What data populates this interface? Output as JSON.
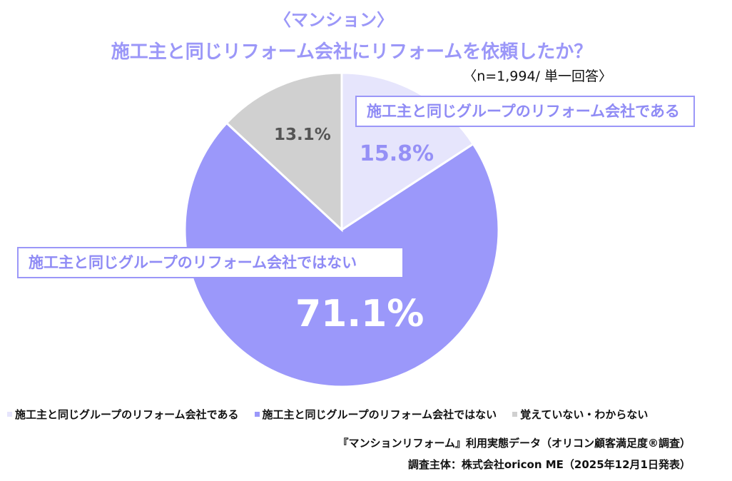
{
  "header": {
    "subtitle": "〈マンション〉",
    "title": "施工主と同じリフォーム会社にリフォームを依頼したか？",
    "sample": "〈n=1,994/ 単一回答〉"
  },
  "chart_data": {
    "type": "pie",
    "title": "施工主と同じリフォーム会社にリフォームを依頼したか？",
    "slices": [
      {
        "label": "施工主と同じグループのリフォーム会社である",
        "value": 15.8,
        "value_label": "15.8%",
        "color": "#e6e5fc"
      },
      {
        "label": "施工主と同じグループのリフォーム会社ではない",
        "value": 71.1,
        "value_label": "71.1%",
        "color": "#9b98fa"
      },
      {
        "label": "覚えていない・わからない",
        "value": 13.1,
        "value_label": "13.1%",
        "color": "#d0d0d0"
      }
    ],
    "legend_position": "bottom"
  },
  "footer": {
    "source_line1": "『マンションリフォーム』利用実態データ（オリコン顧客満足度®調査）",
    "source_line2": "調査主体：株式会社oricon ME（2025年12月1日発表）"
  }
}
